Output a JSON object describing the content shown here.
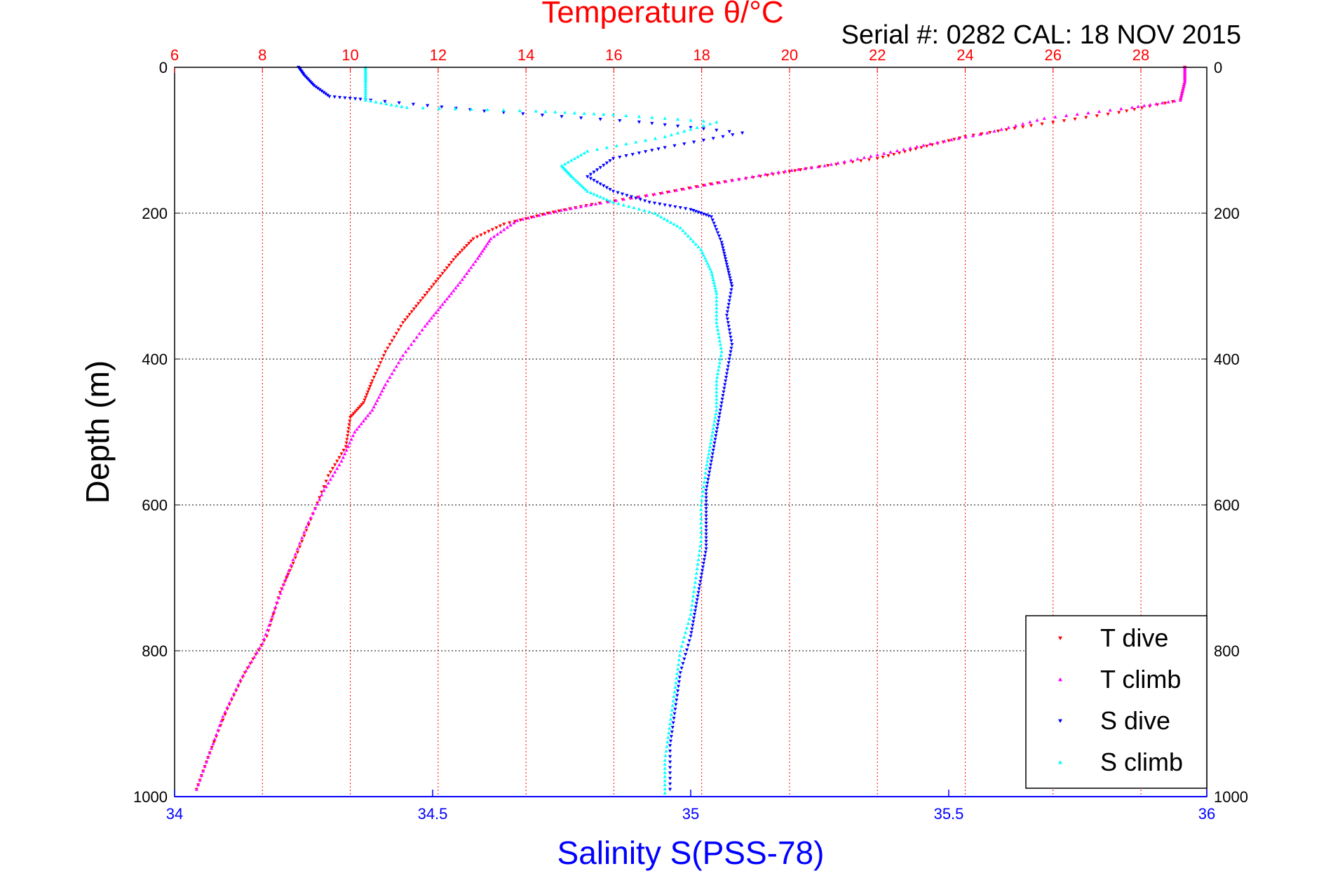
{
  "chart_data": {
    "type": "scatter",
    "title": "Temperature θ/°C",
    "subtitle": "Serial #: 0282  CAL: 18 NOV 2015",
    "xlabel": "Salinity S(PSS-78)",
    "ylabel": "Depth (m)",
    "x2label": "Temperature θ/°C",
    "xlim": [
      34,
      36
    ],
    "x2lim": [
      6,
      29.5
    ],
    "ylim": [
      0,
      1000
    ],
    "y_reversed": true,
    "xticks": [
      "34",
      "34.5",
      "35",
      "35.5",
      "36"
    ],
    "x2ticks": [
      "6",
      "8",
      "10",
      "12",
      "14",
      "16",
      "18",
      "20",
      "22",
      "24",
      "26",
      "28"
    ],
    "yticks": [
      "0",
      "200",
      "400",
      "600",
      "800",
      "1000"
    ],
    "grid": true,
    "legend_position": "bottom-right",
    "colors": {
      "title": "#ff0000",
      "xlabel": "#0000ff",
      "temp_axis": "#ff0000",
      "sal_axis": "#0000ff"
    },
    "series": [
      {
        "name": "T dive",
        "axis": "temperature",
        "marker": "triangle-down",
        "color": "#ff0000",
        "points": [
          [
            29.0,
            0
          ],
          [
            29.0,
            20
          ],
          [
            28.9,
            45
          ],
          [
            27.5,
            62
          ],
          [
            25.5,
            80
          ],
          [
            24.0,
            95
          ],
          [
            23.0,
            110
          ],
          [
            22.0,
            125
          ],
          [
            20.5,
            138
          ],
          [
            19.5,
            148
          ],
          [
            18.2,
            160
          ],
          [
            16.9,
            175
          ],
          [
            15.5,
            188
          ],
          [
            14.5,
            200
          ],
          [
            13.5,
            215
          ],
          [
            12.8,
            235
          ],
          [
            12.4,
            260
          ],
          [
            12.0,
            290
          ],
          [
            11.6,
            320
          ],
          [
            11.2,
            350
          ],
          [
            10.8,
            390
          ],
          [
            10.5,
            430
          ],
          [
            10.3,
            460
          ],
          [
            10.0,
            480
          ],
          [
            9.9,
            520
          ],
          [
            9.5,
            560
          ],
          [
            9.1,
            620
          ],
          [
            8.7,
            680
          ],
          [
            8.4,
            720
          ],
          [
            8.1,
            780
          ],
          [
            7.6,
            830
          ],
          [
            7.2,
            880
          ],
          [
            6.8,
            940
          ],
          [
            6.5,
            990
          ]
        ]
      },
      {
        "name": "T climb",
        "axis": "temperature",
        "marker": "triangle-up",
        "color": "#ff00ff",
        "points": [
          [
            29.0,
            0
          ],
          [
            29.0,
            20
          ],
          [
            28.9,
            45
          ],
          [
            27.8,
            55
          ],
          [
            25.8,
            70
          ],
          [
            24.5,
            90
          ],
          [
            23.2,
            105
          ],
          [
            22.0,
            120
          ],
          [
            20.8,
            135
          ],
          [
            19.6,
            145
          ],
          [
            18.4,
            158
          ],
          [
            17.1,
            172
          ],
          [
            15.7,
            186
          ],
          [
            14.8,
            196
          ],
          [
            13.8,
            210
          ],
          [
            13.2,
            235
          ],
          [
            12.9,
            262
          ],
          [
            12.5,
            295
          ],
          [
            12.1,
            325
          ],
          [
            11.7,
            355
          ],
          [
            11.2,
            395
          ],
          [
            10.8,
            435
          ],
          [
            10.5,
            470
          ],
          [
            10.1,
            500
          ],
          [
            9.8,
            540
          ],
          [
            9.4,
            580
          ],
          [
            9.0,
            630
          ],
          [
            8.6,
            690
          ],
          [
            8.3,
            740
          ],
          [
            8.0,
            790
          ],
          [
            7.5,
            840
          ],
          [
            7.1,
            890
          ],
          [
            6.8,
            940
          ],
          [
            6.5,
            990
          ]
        ]
      },
      {
        "name": "S dive",
        "axis": "salinity",
        "marker": "triangle-down",
        "color": "#0000ff",
        "points": [
          [
            34.24,
            0
          ],
          [
            34.25,
            10
          ],
          [
            34.27,
            25
          ],
          [
            34.3,
            40
          ],
          [
            34.38,
            45
          ],
          [
            34.6,
            60
          ],
          [
            34.9,
            75
          ],
          [
            35.1,
            90
          ],
          [
            34.95,
            110
          ],
          [
            34.85,
            125
          ],
          [
            34.8,
            150
          ],
          [
            34.85,
            170
          ],
          [
            34.92,
            185
          ],
          [
            35.0,
            195
          ],
          [
            35.04,
            205
          ],
          [
            35.06,
            240
          ],
          [
            35.07,
            270
          ],
          [
            35.08,
            300
          ],
          [
            35.07,
            340
          ],
          [
            35.08,
            380
          ],
          [
            35.07,
            420
          ],
          [
            35.06,
            460
          ],
          [
            35.05,
            500
          ],
          [
            35.04,
            540
          ],
          [
            35.03,
            580
          ],
          [
            35.03,
            620
          ],
          [
            35.03,
            660
          ],
          [
            35.02,
            700
          ],
          [
            35.01,
            740
          ],
          [
            35.0,
            780
          ],
          [
            34.98,
            830
          ],
          [
            34.97,
            880
          ],
          [
            34.96,
            930
          ],
          [
            34.96,
            990
          ]
        ]
      },
      {
        "name": "S climb",
        "axis": "salinity",
        "marker": "triangle-up",
        "color": "#00ffff",
        "points": [
          [
            34.37,
            0
          ],
          [
            34.37,
            20
          ],
          [
            34.37,
            45
          ],
          [
            34.45,
            55
          ],
          [
            34.7,
            60
          ],
          [
            34.85,
            65
          ],
          [
            35.05,
            75
          ],
          [
            34.95,
            95
          ],
          [
            34.8,
            115
          ],
          [
            34.75,
            135
          ],
          [
            34.77,
            150
          ],
          [
            34.8,
            170
          ],
          [
            34.85,
            185
          ],
          [
            34.93,
            200
          ],
          [
            34.98,
            220
          ],
          [
            35.02,
            250
          ],
          [
            35.04,
            280
          ],
          [
            35.05,
            310
          ],
          [
            35.05,
            350
          ],
          [
            35.06,
            390
          ],
          [
            35.05,
            430
          ],
          [
            35.05,
            470
          ],
          [
            35.04,
            510
          ],
          [
            35.03,
            550
          ],
          [
            35.02,
            600
          ],
          [
            35.02,
            650
          ],
          [
            35.01,
            700
          ],
          [
            35.0,
            750
          ],
          [
            34.98,
            800
          ],
          [
            34.97,
            850
          ],
          [
            34.96,
            900
          ],
          [
            34.95,
            950
          ],
          [
            34.95,
            995
          ]
        ]
      }
    ]
  }
}
